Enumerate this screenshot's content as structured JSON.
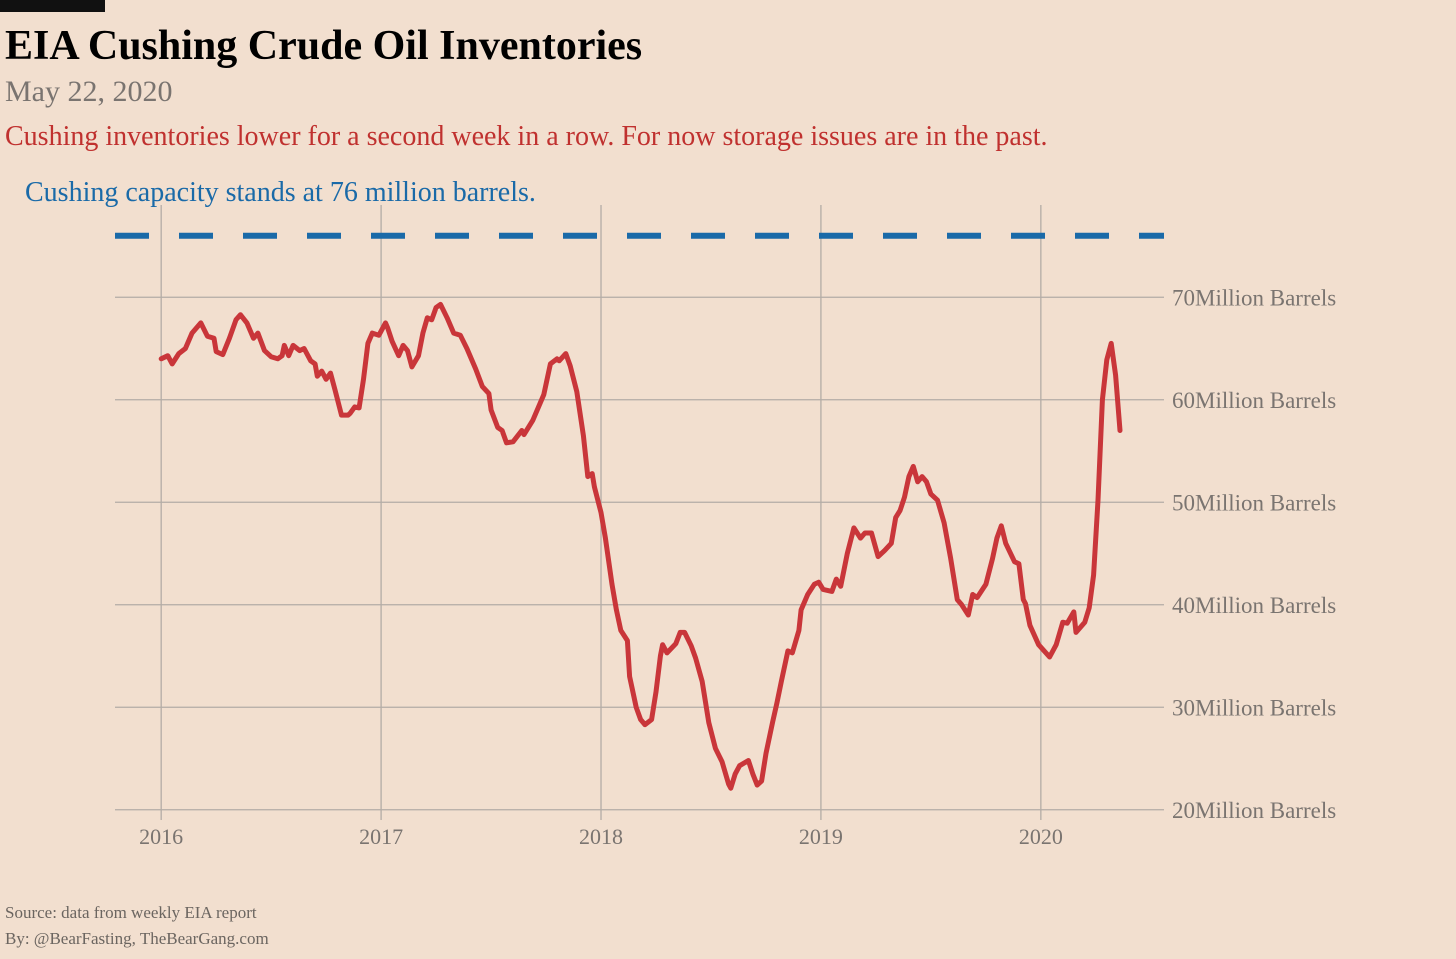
{
  "chart_data": {
    "type": "line",
    "title": "EIA Cushing Crude Oil Inventories",
    "date": "May 22, 2020",
    "subtitle": "Cushing inventories lower for a second week in a row. For now storage issues are in the past.",
    "annotation": "Cushing capacity stands at 76 million barrels.",
    "source": [
      "Source: data from  weekly EIA report",
      "By: @BearFasting, TheBearGang.com"
    ],
    "reference_line": {
      "value": 76,
      "color": "#1a6aa8",
      "dashed": true
    },
    "x": [
      2016.0,
      2016.03,
      2016.05,
      2016.08,
      2016.11,
      2016.14,
      2016.18,
      2016.21,
      2016.24,
      2016.25,
      2016.28,
      2016.31,
      2016.34,
      2016.36,
      2016.39,
      2016.42,
      2016.44,
      2016.47,
      2016.5,
      2016.53,
      2016.55,
      2016.56,
      2016.58,
      2016.6,
      2016.63,
      2016.65,
      2016.68,
      2016.7,
      2016.71,
      2016.73,
      2016.75,
      2016.77,
      2016.79,
      2016.82,
      2016.85,
      2016.86,
      2016.88,
      2016.9,
      2016.92,
      2016.94,
      2016.96,
      2016.99,
      2017.02,
      2017.03,
      2017.05,
      2017.08,
      2017.1,
      2017.12,
      2017.14,
      2017.17,
      2017.19,
      2017.21,
      2017.23,
      2017.25,
      2017.27,
      2017.3,
      2017.32,
      2017.33,
      2017.36,
      2017.39,
      2017.43,
      2017.46,
      2017.49,
      2017.5,
      2017.53,
      2017.55,
      2017.57,
      2017.6,
      2017.64,
      2017.65,
      2017.69,
      2017.74,
      2017.77,
      2017.8,
      2017.81,
      2017.84,
      2017.86,
      2017.89,
      2017.92,
      2017.94,
      2017.96,
      2017.97,
      2018.0,
      2018.02,
      2018.05,
      2018.07,
      2018.09,
      2018.12,
      2018.13,
      2018.16,
      2018.18,
      2018.2,
      2018.23,
      2018.25,
      2018.27,
      2018.28,
      2018.3,
      2018.34,
      2018.36,
      2018.38,
      2018.41,
      2018.43,
      2018.46,
      2018.49,
      2018.52,
      2018.55,
      2018.58,
      2018.59,
      2018.61,
      2018.63,
      2018.67,
      2018.69,
      2018.71,
      2018.73,
      2018.75,
      2018.78,
      2018.8,
      2018.82,
      2018.85,
      2018.87,
      2018.9,
      2018.91,
      2018.94,
      2018.97,
      2018.99,
      2019.01,
      2019.05,
      2019.07,
      2019.09,
      2019.12,
      2019.15,
      2019.18,
      2019.2,
      2019.23,
      2019.26,
      2019.29,
      2019.32,
      2019.34,
      2019.36,
      2019.38,
      2019.4,
      2019.42,
      2019.44,
      2019.46,
      2019.48,
      2019.5,
      2019.53,
      2019.56,
      2019.59,
      2019.62,
      2019.64,
      2019.67,
      2019.69,
      2019.71,
      2019.75,
      2019.78,
      2019.8,
      2019.82,
      2019.84,
      2019.88,
      2019.9,
      2019.92,
      2019.93,
      2019.95,
      2019.99,
      2020.04,
      2020.07,
      2020.1,
      2020.12,
      2020.15,
      2020.16,
      2020.2,
      2020.22,
      2020.24,
      2020.26,
      2020.28,
      2020.3,
      2020.32,
      2020.34,
      2020.36
    ],
    "series": [
      {
        "color": "#c9363a",
        "values": [
          64.0,
          64.3,
          63.5,
          64.5,
          65.0,
          66.5,
          67.5,
          66.2,
          66.0,
          64.7,
          64.4,
          66.0,
          67.8,
          68.3,
          67.5,
          66.0,
          66.5,
          64.8,
          64.2,
          64.0,
          64.3,
          65.3,
          64.3,
          65.3,
          64.8,
          65.0,
          63.8,
          63.5,
          62.3,
          62.8,
          62.0,
          62.6,
          61.0,
          58.5,
          58.5,
          58.7,
          59.3,
          59.2,
          62.0,
          65.5,
          66.5,
          66.3,
          67.5,
          67.0,
          65.7,
          64.3,
          65.3,
          64.8,
          63.2,
          64.3,
          66.5,
          68.0,
          67.8,
          69.0,
          69.3,
          68.0,
          67.0,
          66.5,
          66.3,
          65.0,
          63.0,
          61.3,
          60.6,
          59.0,
          57.3,
          57.0,
          55.8,
          55.9,
          57.0,
          56.6,
          58.0,
          60.5,
          63.5,
          64.0,
          63.8,
          64.5,
          63.3,
          60.8,
          56.5,
          52.5,
          52.8,
          51.5,
          49.0,
          46.5,
          42.0,
          39.5,
          37.5,
          36.5,
          33.0,
          30.0,
          28.8,
          28.3,
          28.8,
          31.5,
          35.0,
          36.1,
          35.3,
          36.2,
          37.3,
          37.3,
          36.0,
          34.8,
          32.5,
          28.5,
          26.0,
          24.7,
          22.5,
          22.1,
          23.5,
          24.3,
          24.8,
          23.5,
          22.4,
          22.8,
          25.5,
          28.5,
          30.4,
          32.5,
          35.5,
          35.3,
          37.5,
          39.5,
          41.0,
          42.0,
          42.2,
          41.5,
          41.3,
          42.5,
          41.8,
          45.0,
          47.5,
          46.5,
          47.0,
          47.0,
          44.7,
          45.3,
          46.0,
          48.5,
          49.2,
          50.5,
          52.5,
          53.5,
          52.0,
          52.5,
          52.0,
          50.8,
          50.2,
          48.0,
          44.5,
          40.5,
          40.0,
          39.0,
          41.0,
          40.7,
          42.0,
          44.5,
          46.5,
          47.7,
          46.0,
          44.2,
          44.0,
          40.5,
          40.1,
          38.0,
          36.1,
          34.9,
          36.1,
          38.3,
          38.2,
          39.3,
          37.3,
          38.3,
          39.7,
          42.9,
          50.2,
          60.0,
          63.9,
          65.5,
          62.4,
          57.0
        ]
      }
    ],
    "xlim": [
      2015.79,
      2020.56
    ],
    "ylim": [
      19,
      79
    ],
    "xticks": [
      2016,
      2017,
      2018,
      2019,
      2020
    ],
    "yticks": [
      {
        "value": 20,
        "label": "20Million Barrels"
      },
      {
        "value": 30,
        "label": "30Million Barrels"
      },
      {
        "value": 40,
        "label": "40Million Barrels"
      },
      {
        "value": 50,
        "label": "50Million Barrels"
      },
      {
        "value": 60,
        "label": "60Million Barrels"
      },
      {
        "value": 70,
        "label": "70Million Barrels"
      }
    ],
    "grid": true
  }
}
